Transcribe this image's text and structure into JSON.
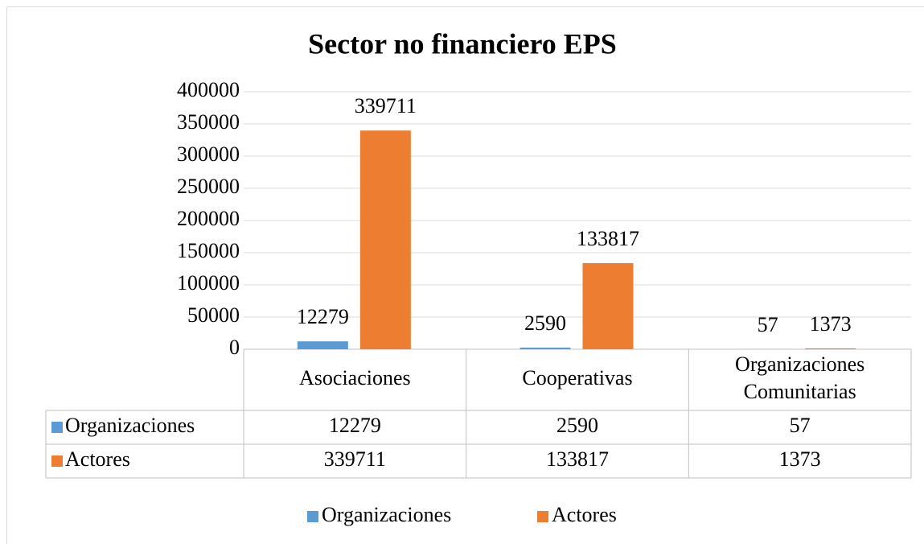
{
  "chart_data": {
    "type": "bar",
    "title": "Sector no financiero EPS",
    "categories": [
      "Asociaciones",
      "Cooperativas",
      "Organizaciones Comunitarias"
    ],
    "series": [
      {
        "name": "Organizaciones",
        "color": "#5b9bd5",
        "values": [
          12279,
          2590,
          57
        ]
      },
      {
        "name": "Actores",
        "color": "#ed7d31",
        "values": [
          339711,
          133817,
          1373
        ]
      }
    ],
    "ylim": [
      0,
      400000
    ],
    "yticks": [
      0,
      50000,
      100000,
      150000,
      200000,
      250000,
      300000,
      350000,
      400000
    ],
    "grid": true,
    "legend": "bottom",
    "data_table": true
  }
}
